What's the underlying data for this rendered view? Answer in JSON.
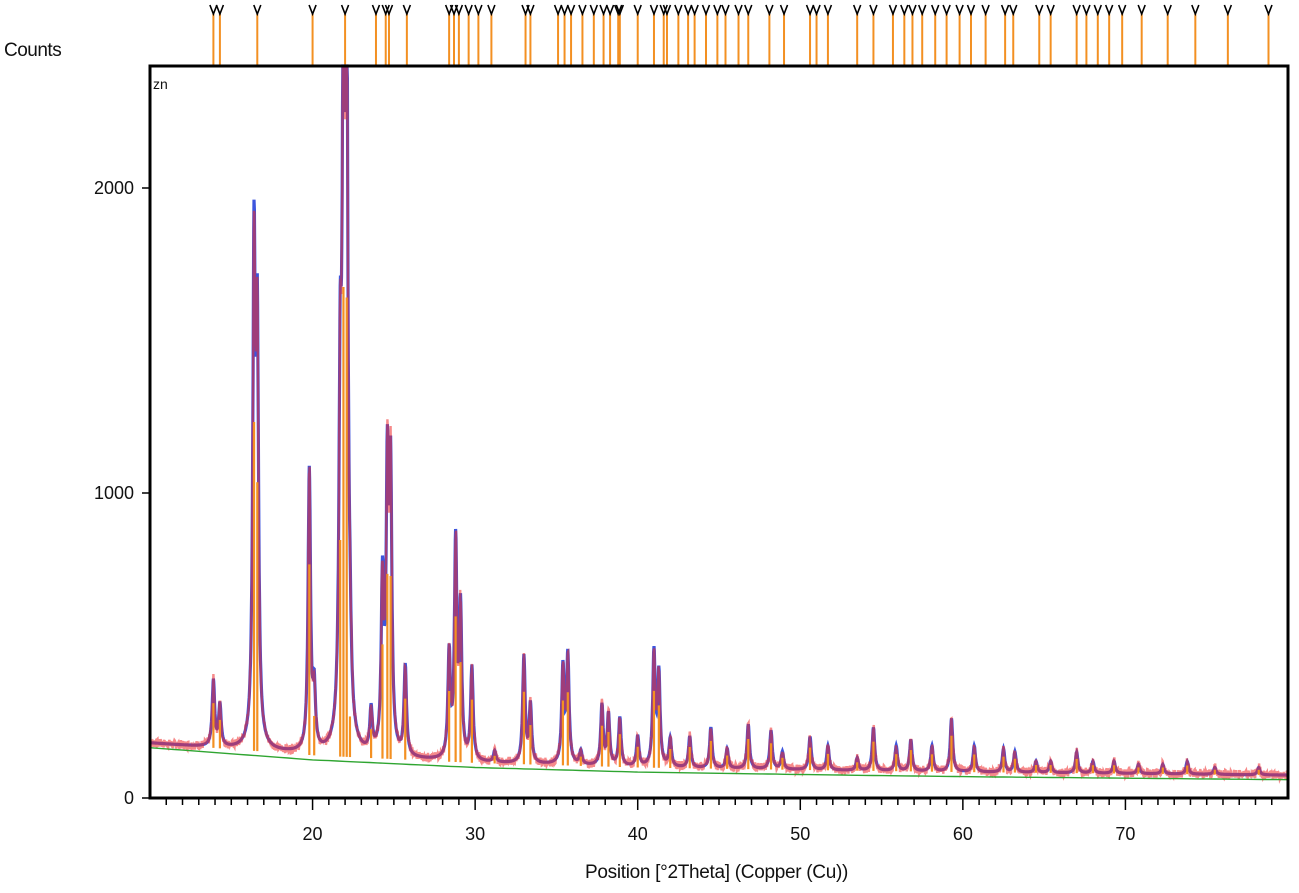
{
  "chart_data": {
    "type": "line",
    "title": "",
    "corner_label": "zn",
    "ylabel": "Counts",
    "xlabel": "Position [°2Theta] (Copper (Cu))",
    "xlim": [
      10,
      80
    ],
    "ylim": [
      0,
      2400
    ],
    "x_ticks": [
      20,
      30,
      40,
      50,
      60,
      70
    ],
    "y_ticks": [
      0,
      1000,
      2000
    ],
    "grid": false,
    "colors": {
      "observed": "#ee2a2a",
      "calculated": "#3d55dd",
      "peaks": "#f39022",
      "background": "#2fa531",
      "frame": "#000000"
    },
    "background": {
      "x": [
        10,
        20,
        30,
        40,
        50,
        60,
        70,
        80
      ],
      "y": [
        180,
        140,
        115,
        100,
        92,
        85,
        80,
        75
      ]
    },
    "peaks": [
      {
        "x": 13.9,
        "y": 380
      },
      {
        "x": 14.3,
        "y": 300
      },
      {
        "x": 16.4,
        "y": 1740
      },
      {
        "x": 16.6,
        "y": 1450
      },
      {
        "x": 19.8,
        "y": 1060
      },
      {
        "x": 20.1,
        "y": 330
      },
      {
        "x": 21.7,
        "y": 1180
      },
      {
        "x": 21.9,
        "y": 2400
      },
      {
        "x": 22.1,
        "y": 2350
      },
      {
        "x": 22.3,
        "y": 330
      },
      {
        "x": 23.6,
        "y": 270
      },
      {
        "x": 24.3,
        "y": 680
      },
      {
        "x": 24.6,
        "y": 1020
      },
      {
        "x": 24.8,
        "y": 1010
      },
      {
        "x": 25.7,
        "y": 420
      },
      {
        "x": 28.4,
        "y": 460
      },
      {
        "x": 28.8,
        "y": 820
      },
      {
        "x": 29.1,
        "y": 600
      },
      {
        "x": 29.8,
        "y": 420
      },
      {
        "x": 31.2,
        "y": 150
      },
      {
        "x": 33.0,
        "y": 460
      },
      {
        "x": 33.4,
        "y": 300
      },
      {
        "x": 35.4,
        "y": 420
      },
      {
        "x": 35.7,
        "y": 460
      },
      {
        "x": 36.5,
        "y": 150
      },
      {
        "x": 37.8,
        "y": 300
      },
      {
        "x": 38.2,
        "y": 270
      },
      {
        "x": 38.9,
        "y": 260
      },
      {
        "x": 40.0,
        "y": 200
      },
      {
        "x": 41.0,
        "y": 470
      },
      {
        "x": 41.3,
        "y": 400
      },
      {
        "x": 42.0,
        "y": 190
      },
      {
        "x": 43.2,
        "y": 200
      },
      {
        "x": 44.5,
        "y": 230
      },
      {
        "x": 45.5,
        "y": 160
      },
      {
        "x": 46.8,
        "y": 240
      },
      {
        "x": 48.2,
        "y": 220
      },
      {
        "x": 48.9,
        "y": 150
      },
      {
        "x": 50.6,
        "y": 200
      },
      {
        "x": 51.7,
        "y": 170
      },
      {
        "x": 53.5,
        "y": 130
      },
      {
        "x": 54.5,
        "y": 230
      },
      {
        "x": 55.9,
        "y": 170
      },
      {
        "x": 56.8,
        "y": 190
      },
      {
        "x": 58.1,
        "y": 170
      },
      {
        "x": 59.3,
        "y": 260
      },
      {
        "x": 60.7,
        "y": 170
      },
      {
        "x": 62.5,
        "y": 160
      },
      {
        "x": 63.2,
        "y": 150
      },
      {
        "x": 64.5,
        "y": 120
      },
      {
        "x": 65.4,
        "y": 120
      },
      {
        "x": 67.0,
        "y": 150
      },
      {
        "x": 68.0,
        "y": 120
      },
      {
        "x": 69.3,
        "y": 120
      },
      {
        "x": 70.8,
        "y": 110
      },
      {
        "x": 72.3,
        "y": 110
      },
      {
        "x": 73.8,
        "y": 120
      },
      {
        "x": 75.5,
        "y": 100
      },
      {
        "x": 78.2,
        "y": 100
      }
    ],
    "reflection_positions": [
      13.9,
      14.3,
      16.6,
      20.0,
      22.0,
      23.9,
      24.5,
      24.7,
      25.8,
      28.4,
      28.7,
      29.0,
      29.6,
      30.2,
      31.0,
      33.1,
      33.4,
      35.1,
      35.5,
      35.9,
      36.6,
      37.3,
      37.9,
      38.3,
      38.8,
      38.9,
      40.0,
      41.0,
      41.6,
      41.8,
      42.5,
      43.1,
      43.5,
      44.2,
      44.9,
      45.4,
      46.2,
      46.8,
      48.1,
      49.0,
      50.6,
      51.0,
      51.7,
      53.5,
      54.5,
      55.7,
      56.4,
      56.9,
      57.5,
      58.3,
      59.0,
      59.8,
      60.5,
      61.4,
      62.6,
      63.1,
      64.7,
      65.4,
      67.0,
      67.6,
      68.3,
      69.0,
      69.8,
      71.0,
      72.6,
      74.3,
      76.3,
      78.8
    ]
  }
}
